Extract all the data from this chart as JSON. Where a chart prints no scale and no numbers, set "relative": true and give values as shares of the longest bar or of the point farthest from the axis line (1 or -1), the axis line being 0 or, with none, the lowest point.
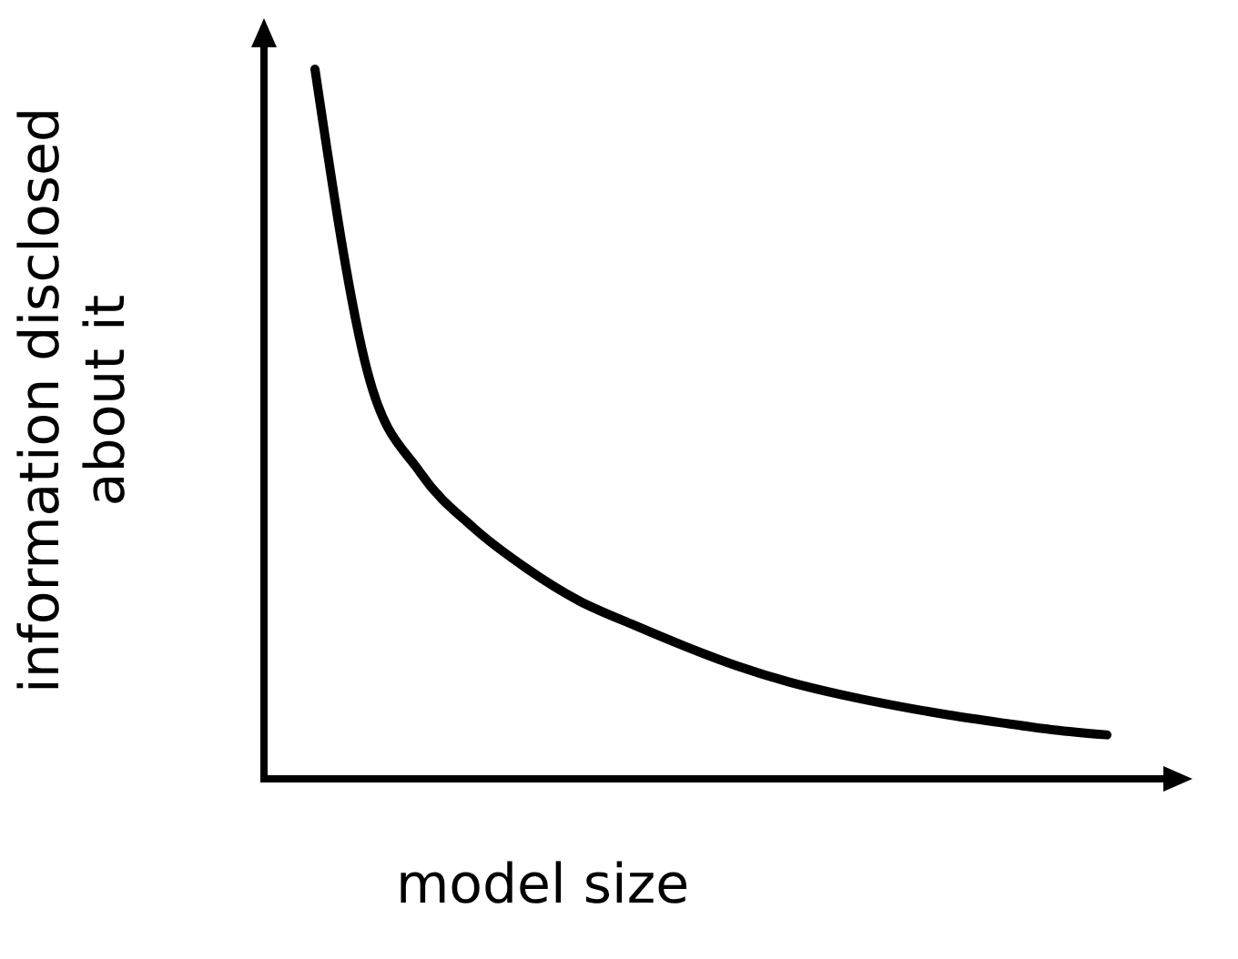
{
  "chart_data": {
    "type": "line",
    "relative": true,
    "xlabel": "model size",
    "ylabel": "information disclosed about it",
    "categories": [
      null,
      null,
      null,
      null,
      null,
      null,
      null,
      null,
      null,
      null,
      null,
      null,
      null,
      null,
      null,
      null
    ],
    "series": [
      {
        "color": "#000000",
        "values": [
          1,
          0.572,
          0.431,
          0.354,
          0.297,
          0.251,
          0.218,
          0.187,
          0.159,
          0.136,
          0.118,
          0.103,
          0.09,
          0.079,
          0.069,
          0.062
        ]
      }
    ],
    "grid": false,
    "marker": "none",
    "line_style": "solid"
  }
}
